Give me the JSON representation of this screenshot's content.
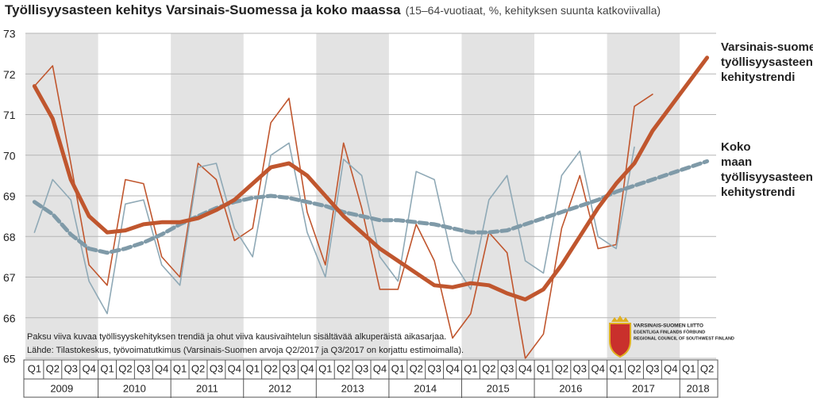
{
  "chart_data": {
    "type": "line",
    "title": "Työllisyysasteen kehitys Varsinais-Suomessa ja koko maassa",
    "subtitle": "(15–64-vuotiaat, %, kehityksen suunta katkoviivalla)",
    "categories": [
      "Q1",
      "Q2",
      "Q3",
      "Q4",
      "Q1",
      "Q2",
      "Q3",
      "Q4",
      "Q1",
      "Q2",
      "Q3",
      "Q4",
      "Q1",
      "Q2",
      "Q3",
      "Q4",
      "Q1",
      "Q2",
      "Q3",
      "Q4",
      "Q1",
      "Q2",
      "Q3",
      "Q4",
      "Q1",
      "Q2",
      "Q3",
      "Q4",
      "Q1",
      "Q2",
      "Q3",
      "Q4",
      "Q1",
      "Q2",
      "Q3",
      "Q4",
      "Q1",
      "Q2"
    ],
    "years": [
      "2009",
      "2010",
      "2011",
      "2012",
      "2013",
      "2014",
      "2015",
      "2016",
      "2017",
      "2018"
    ],
    "ylim": [
      65,
      73
    ],
    "yticks": [
      65,
      66,
      67,
      68,
      69,
      70,
      71,
      72,
      73
    ],
    "grid": true,
    "series": [
      {
        "color": "#c0562e",
        "width": 1.6,
        "values": [
          71.7,
          72.2,
          69.8,
          67.3,
          66.8,
          69.4,
          69.3,
          67.5,
          67.0,
          69.8,
          69.4,
          67.9,
          68.2,
          70.8,
          71.4,
          68.6,
          67.3,
          70.3,
          68.7,
          66.7,
          66.7,
          68.3,
          67.4,
          65.5,
          66.1,
          68.1,
          67.6,
          65.0,
          65.6,
          68.2,
          69.5,
          67.7,
          67.8,
          71.2,
          71.5,
          null,
          null,
          null
        ]
      },
      {
        "color": "#8fa9b6",
        "width": 1.6,
        "values": [
          68.1,
          69.4,
          68.9,
          66.9,
          66.1,
          68.8,
          68.9,
          67.3,
          66.8,
          69.7,
          69.8,
          68.2,
          67.5,
          70.0,
          70.3,
          68.1,
          67.0,
          69.9,
          69.5,
          67.5,
          66.9,
          69.6,
          69.4,
          67.4,
          66.7,
          68.9,
          69.5,
          67.4,
          67.1,
          69.5,
          70.1,
          68.0,
          67.7,
          70.2,
          null,
          null,
          null,
          null
        ]
      },
      {
        "name": "Varsinais-suomen työllisyysasteen kehitystrendi",
        "color": "#c0562e",
        "width": 5,
        "dash": "none",
        "values": [
          71.7,
          70.9,
          69.4,
          68.5,
          68.1,
          68.15,
          68.3,
          68.35,
          68.35,
          68.45,
          68.65,
          68.9,
          69.3,
          69.7,
          69.8,
          69.5,
          69.0,
          68.5,
          68.1,
          67.7,
          67.4,
          67.1,
          66.8,
          66.75,
          66.85,
          66.8,
          66.6,
          66.45,
          66.7,
          67.3,
          68.0,
          68.7,
          69.3,
          69.8,
          70.6,
          71.2,
          71.8,
          72.4
        ]
      },
      {
        "name": "Koko maan työllisyysasteen kehitystrendi",
        "color": "#7f9aa8",
        "width": 5,
        "dash": "10 5",
        "values": [
          68.85,
          68.55,
          68.05,
          67.7,
          67.6,
          67.7,
          67.85,
          68.05,
          68.3,
          68.5,
          68.7,
          68.85,
          68.95,
          69.0,
          68.95,
          68.85,
          68.75,
          68.6,
          68.5,
          68.4,
          68.4,
          68.35,
          68.3,
          68.2,
          68.1,
          68.1,
          68.15,
          68.3,
          68.45,
          68.6,
          68.75,
          68.9,
          69.1,
          69.25,
          69.4,
          69.55,
          69.7,
          69.85
        ]
      }
    ],
    "notes": [
      "Paksu viiva kuvaa työllisyyskehityksen trendiä ja ohut viiva kausivaihtelun sisältävää alkuperäistä aikasarjaa.",
      "Lähde: Tilastokeskus, työvoimatutkimus (Varsinais-Suomen arvoja Q2/2017 ja Q3/2017 on korjattu estimoimalla)."
    ],
    "logo": [
      "VARSINAIS-SUOMEN LIITTO",
      "EGENTLIGA FINLANDS FÖRBUND",
      "REGIONAL COUNCIL OF SOUTHWEST FINLAND"
    ]
  }
}
